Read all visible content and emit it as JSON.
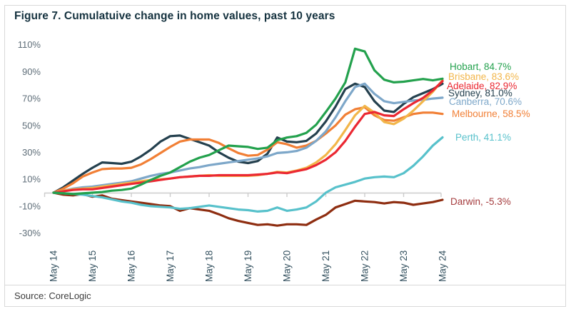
{
  "figure": {
    "title": "Figure 7. Cumulatuive change in home values, past 10 years",
    "source": "Source: CoreLogic"
  },
  "colors": {
    "title_text": "#15323f",
    "y_axis_text": "#5f6e79",
    "x_axis_text": "#355260",
    "baseline": "#cccccc",
    "frame_border": "#d9d9d9",
    "source_text": "#3c3c3c"
  },
  "chart_data": {
    "type": "line",
    "title": "Figure 7. Cumulatuive change in home values, past 10 years",
    "source": "Source: CoreLogic",
    "legend_position": "right",
    "gridlines": "zero-baseline-only",
    "x_axis": {
      "tick_labels": [
        "May 14",
        "May 15",
        "May 16",
        "May 17",
        "May 18",
        "May 19",
        "May 20",
        "May 21",
        "May 22",
        "May 23",
        "May 24"
      ],
      "interval_months_between_points": 3,
      "points_per_series": 41
    },
    "y_axis": {
      "unit": "%",
      "tick_labels": [
        "110%",
        "90%",
        "70%",
        "50%",
        "30%",
        "10%",
        "-10%",
        "-30%"
      ],
      "tick_values": [
        110,
        90,
        70,
        50,
        30,
        10,
        -10,
        -30
      ],
      "ylim": [
        -33,
        113
      ]
    },
    "series": [
      {
        "name": "Hobart",
        "final_value": 84.7,
        "legend": "Hobart, 84.7%",
        "color": "#23a14d",
        "values": [
          0,
          -0.5,
          -1,
          -0.5,
          0,
          0.5,
          1.5,
          2,
          3,
          6,
          9.5,
          12.5,
          15,
          19,
          23,
          26,
          28,
          31.5,
          35,
          34.5,
          34,
          32.5,
          33.5,
          39,
          41,
          42,
          44.5,
          50.5,
          60,
          70,
          82,
          107,
          105,
          91,
          84,
          82,
          82.5,
          83.5,
          84.5,
          83.5,
          84.7
        ]
      },
      {
        "name": "Brisbane",
        "final_value": 83.6,
        "legend": "Brisbane, 83.6%",
        "color": "#f2b64a",
        "values": [
          0,
          1.5,
          2.5,
          3,
          3.5,
          4.5,
          5.5,
          6.5,
          7.5,
          8.5,
          9.5,
          10,
          10.5,
          11.5,
          12,
          12.5,
          13,
          12.5,
          12.5,
          12.5,
          12.5,
          13,
          14,
          15.5,
          15,
          16.5,
          18.5,
          22.5,
          28,
          36,
          46.5,
          57.5,
          64.5,
          59.5,
          52.5,
          51,
          55,
          61,
          68,
          75,
          83.6
        ]
      },
      {
        "name": "Adelaide",
        "final_value": 82.9,
        "legend": "Adelaide, 82.9%",
        "color": "#eb2832",
        "values": [
          0,
          1,
          2,
          2.5,
          2.5,
          3.5,
          4.5,
          5.5,
          6.5,
          7.5,
          8.5,
          9.5,
          10.5,
          11.5,
          12,
          12.5,
          12.5,
          13,
          13,
          13,
          13,
          13.5,
          14,
          15,
          14.5,
          16,
          17.5,
          20.5,
          24.5,
          30,
          38.5,
          49,
          58.5,
          60,
          57.5,
          57,
          62,
          66.5,
          70.5,
          76,
          82.9
        ]
      },
      {
        "name": "Sydney",
        "final_value": 81.0,
        "legend": "Sydney, 81.0%",
        "color": "#24404e",
        "values": [
          0,
          4,
          9,
          14,
          18.5,
          22.5,
          22,
          21.5,
          23,
          27,
          32,
          38,
          42,
          42.5,
          40,
          37.5,
          35,
          30,
          26,
          23,
          22,
          23.5,
          29,
          41,
          38,
          37.5,
          38.5,
          44,
          53,
          64,
          77,
          81,
          78.5,
          68,
          61,
          60,
          66,
          71,
          74,
          77,
          81
        ]
      },
      {
        "name": "Canberra",
        "final_value": 70.6,
        "legend": "Canberra, 70.6%",
        "color": "#7da7c9",
        "values": [
          0,
          1.5,
          3,
          4,
          4.5,
          5.5,
          6.5,
          7.5,
          8.5,
          10.5,
          12.5,
          14,
          15,
          16.5,
          18,
          19,
          20.5,
          21.5,
          22.5,
          23.5,
          24.5,
          25.5,
          27,
          29.5,
          30,
          31,
          33.5,
          38.5,
          45.5,
          56,
          68,
          78.5,
          81,
          73.5,
          68,
          66.5,
          67.5,
          68.5,
          69,
          70,
          70.6
        ]
      },
      {
        "name": "Melbourne",
        "final_value": 58.5,
        "legend": "Melbourne, 58.5%",
        "color": "#f17f35",
        "values": [
          0,
          3,
          7,
          12,
          15,
          17.5,
          18,
          18,
          18.5,
          21,
          25,
          29.5,
          34,
          38,
          39.5,
          39.5,
          39.5,
          37,
          33,
          29.5,
          27.5,
          28,
          32,
          37.5,
          36,
          33.5,
          35,
          38.5,
          44,
          50,
          58,
          62,
          63.5,
          57.5,
          54,
          53.5,
          56,
          58.5,
          59.5,
          59.5,
          58.5
        ]
      },
      {
        "name": "Perth",
        "final_value": 41.1,
        "legend": "Perth, 41.1%",
        "color": "#57c1cb",
        "values": [
          0,
          -0.5,
          -1,
          -1.5,
          -2.5,
          -3.5,
          -5,
          -6.5,
          -7.5,
          -9,
          -10,
          -10.5,
          -11,
          -12,
          -11.5,
          -10.5,
          -9.5,
          -10.5,
          -11.5,
          -12.5,
          -13,
          -14,
          -13.5,
          -11,
          -13.5,
          -12.5,
          -11,
          -6.5,
          0,
          4,
          6,
          8,
          10.5,
          11.5,
          12,
          11.5,
          14.5,
          20,
          27,
          35,
          41.1
        ]
      },
      {
        "name": "Darwin",
        "final_value": -5.3,
        "legend": "Darwin, -5.3%",
        "color": "#8e2d10",
        "label_color": "#a53c3e",
        "values": [
          0,
          -1.5,
          -2,
          -1,
          -3,
          -2,
          -4.5,
          -5.5,
          -6.5,
          -7.5,
          -8.5,
          -9.5,
          -10,
          -13.5,
          -11.5,
          -12.5,
          -13.5,
          -16,
          -19,
          -21,
          -22.5,
          -24,
          -23.5,
          -24.5,
          -23.5,
          -23.5,
          -24,
          -20,
          -16.5,
          -11,
          -8.5,
          -6,
          -6.5,
          -7,
          -8,
          -7,
          -7.5,
          -9,
          -8,
          -7,
          -5.3
        ]
      }
    ]
  }
}
